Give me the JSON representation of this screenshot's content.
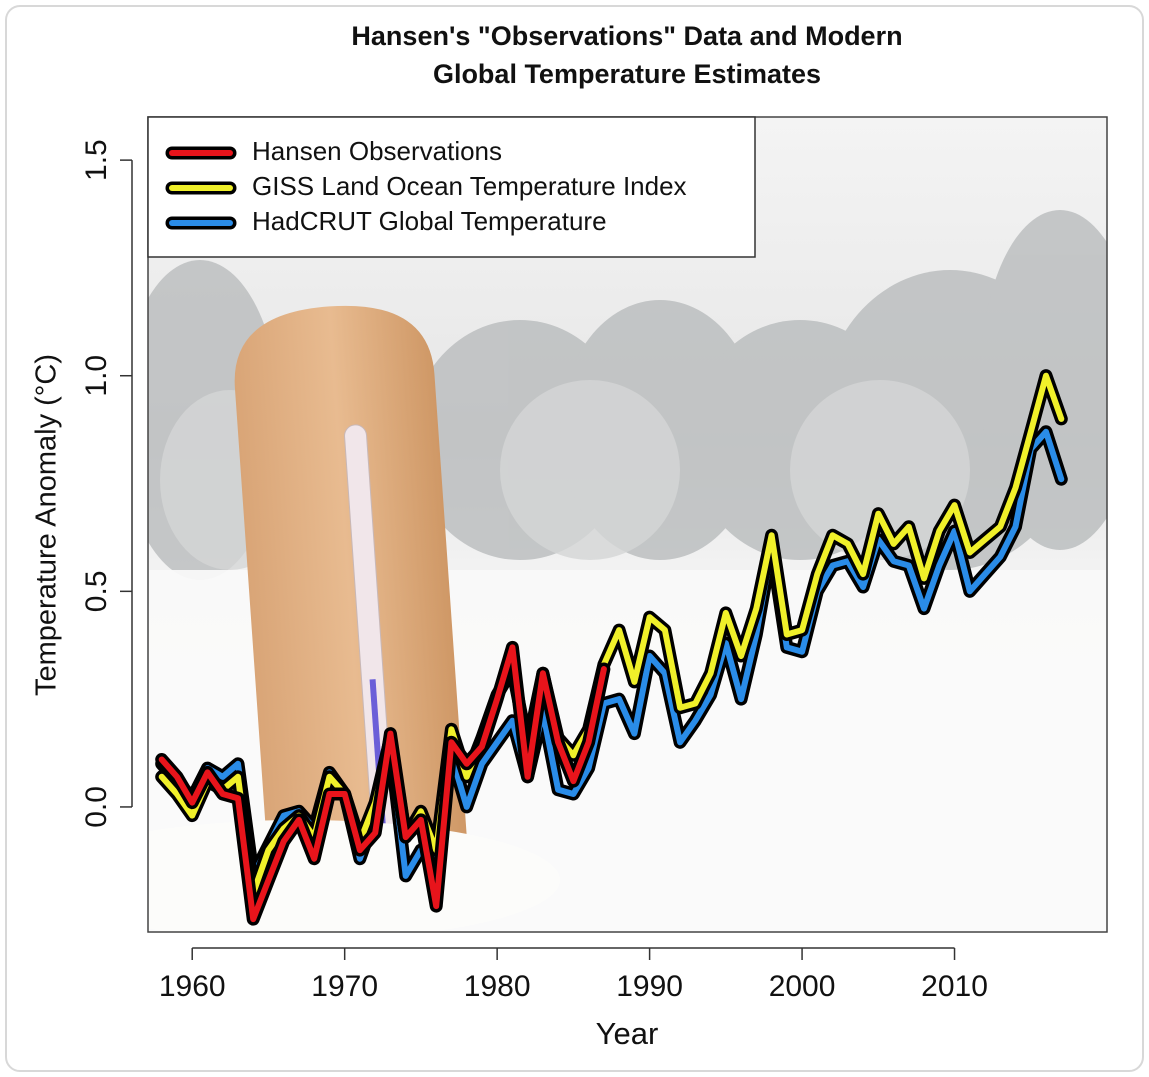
{
  "chart_data": {
    "type": "line",
    "title": [
      "Hansen's \"Observations\" Data and Modern",
      "Global Temperature Estimates"
    ],
    "x_label": "Year",
    "y_label": "Temperature Anomaly (°C)",
    "x": [
      1958,
      1959,
      1960,
      1961,
      1962,
      1963,
      1964,
      1965,
      1966,
      1967,
      1968,
      1969,
      1970,
      1971,
      1972,
      1973,
      1974,
      1975,
      1976,
      1977,
      1978,
      1979,
      1980,
      1981,
      1982,
      1983,
      1984,
      1985,
      1986,
      1987,
      1988,
      1989,
      1990,
      1991,
      1992,
      1993,
      1994,
      1995,
      1996,
      1997,
      1998,
      1999,
      2000,
      2001,
      2002,
      2003,
      2004,
      2005,
      2006,
      2007,
      2008,
      2009,
      2010,
      2011,
      2012,
      2013,
      2014,
      2015,
      2016,
      2017
    ],
    "series": [
      {
        "name": "Hansen Observations",
        "color": "#e8141b",
        "values": [
          0.11,
          0.07,
          0.01,
          0.08,
          0.03,
          0.02,
          -0.26,
          -0.17,
          -0.08,
          -0.03,
          -0.12,
          0.03,
          0.03,
          -0.1,
          -0.06,
          0.17,
          -0.07,
          -0.03,
          -0.23,
          0.15,
          0.1,
          0.14,
          0.25,
          0.37,
          0.07,
          0.31,
          0.15,
          0.06,
          0.15,
          0.32,
          null,
          null,
          null,
          null,
          null,
          null,
          null,
          null,
          null,
          null,
          null,
          null,
          null,
          null,
          null,
          null,
          null,
          null,
          null,
          null,
          null,
          null,
          null,
          null,
          null,
          null,
          null,
          null,
          null,
          null
        ]
      },
      {
        "name": "GISS Land Ocean Temperature Index",
        "color": "#f0f02a",
        "values": [
          0.07,
          0.03,
          -0.02,
          0.06,
          0.04,
          0.07,
          -0.2,
          -0.1,
          -0.05,
          -0.02,
          -0.07,
          0.07,
          0.03,
          -0.08,
          0.01,
          0.16,
          -0.07,
          -0.01,
          -0.1,
          0.18,
          0.07,
          0.16,
          0.26,
          0.32,
          0.14,
          0.31,
          0.16,
          0.12,
          0.18,
          0.33,
          0.41,
          0.29,
          0.44,
          0.41,
          0.23,
          0.24,
          0.31,
          0.45,
          0.35,
          0.46,
          0.63,
          0.4,
          0.41,
          0.54,
          0.63,
          0.61,
          0.54,
          0.68,
          0.61,
          0.65,
          0.53,
          0.64,
          0.7,
          0.59,
          0.62,
          0.65,
          0.74,
          0.87,
          1.0,
          0.9
        ]
      },
      {
        "name": "HadCRUT Global Temperature",
        "color": "#2a8ce8",
        "values": [
          0.1,
          0.06,
          0.02,
          0.09,
          0.07,
          0.1,
          -0.16,
          -0.09,
          -0.02,
          -0.01,
          -0.05,
          0.08,
          0.03,
          -0.12,
          -0.02,
          0.14,
          -0.16,
          -0.1,
          -0.13,
          0.12,
          0.0,
          0.1,
          0.15,
          0.2,
          0.07,
          0.22,
          0.04,
          0.03,
          0.09,
          0.24,
          0.25,
          0.17,
          0.35,
          0.31,
          0.15,
          0.2,
          0.26,
          0.38,
          0.25,
          0.4,
          0.6,
          0.37,
          0.36,
          0.5,
          0.56,
          0.57,
          0.51,
          0.62,
          0.57,
          0.56,
          0.46,
          0.56,
          0.64,
          0.5,
          0.54,
          0.58,
          0.65,
          0.83,
          0.87,
          0.76
        ]
      }
    ],
    "draw_order": [
      2,
      1,
      0
    ],
    "xlim": [
      1957.1,
      2020
    ],
    "ylim": [
      -0.29,
      1.6
    ],
    "xticks": [
      1960,
      1970,
      1980,
      1990,
      2000,
      2010
    ],
    "yticks": [
      {
        "value": 0,
        "label": "0.0"
      },
      0.5,
      {
        "value": 1,
        "label": "1.0"
      },
      1.5
    ],
    "legend": "top-left"
  }
}
